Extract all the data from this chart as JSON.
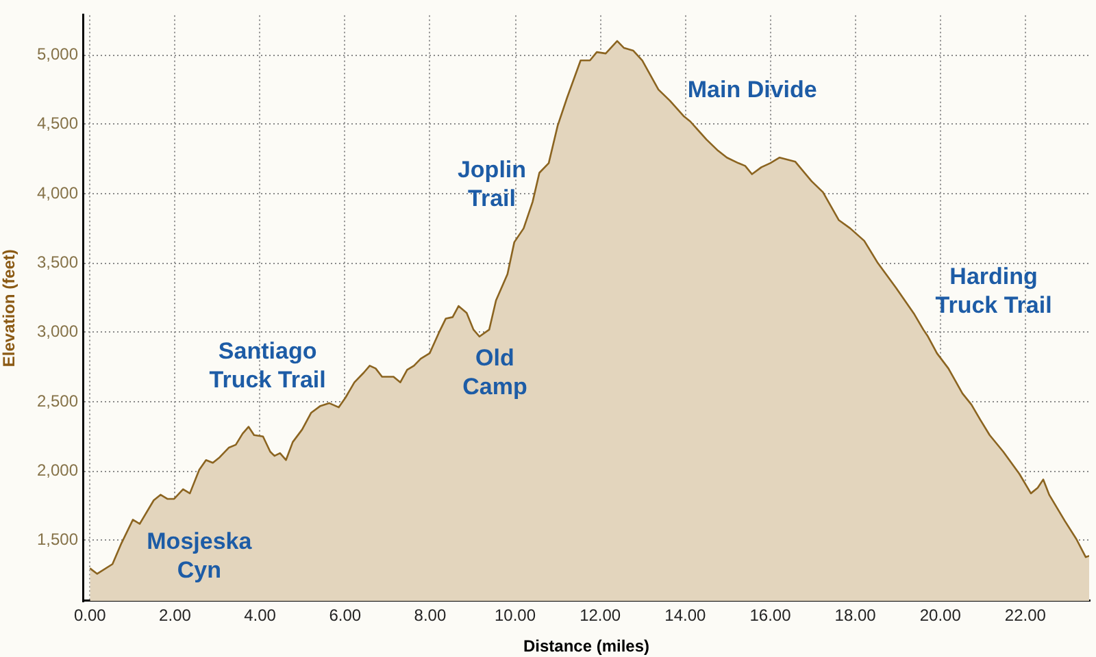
{
  "chart_data": {
    "type": "area",
    "xlabel": "Distance (miles)",
    "ylabel": "Elevation (feet)",
    "x": [
      0,
      0.17,
      0.53,
      0.74,
      1.01,
      1.17,
      1.5,
      1.66,
      1.82,
      1.98,
      2.19,
      2.35,
      2.57,
      2.73,
      2.89,
      3.05,
      3.27,
      3.43,
      3.59,
      3.73,
      3.86,
      4.07,
      4.24,
      4.34,
      4.47,
      4.61,
      4.77,
      4.99,
      5.2,
      5.42,
      5.63,
      5.85,
      6.01,
      6.22,
      6.44,
      6.58,
      6.72,
      6.87,
      7.14,
      7.3,
      7.46,
      7.62,
      7.78,
      7.99,
      8.21,
      8.37,
      8.53,
      8.67,
      8.86,
      9.02,
      9.16,
      9.39,
      9.55,
      9.82,
      9.98,
      10.2,
      10.41,
      10.57,
      10.79,
      11.0,
      11.22,
      11.54,
      11.76,
      11.92,
      12.13,
      12.4,
      12.56,
      12.78,
      12.99,
      13.37,
      13.64,
      13.96,
      14.12,
      14.5,
      14.77,
      14.98,
      15.25,
      15.41,
      15.57,
      15.79,
      16.0,
      16.22,
      16.59,
      16.97,
      17.24,
      17.61,
      17.88,
      18.21,
      18.53,
      18.96,
      19.39,
      19.6,
      19.71,
      19.92,
      20.19,
      20.52,
      20.73,
      20.94,
      21.16,
      21.48,
      21.86,
      22.13,
      22.29,
      22.42,
      22.56,
      22.93,
      23.2,
      23.42,
      23.5
    ],
    "values": [
      1300,
      1260,
      1330,
      1480,
      1650,
      1620,
      1790,
      1830,
      1800,
      1800,
      1870,
      1840,
      2010,
      2080,
      2060,
      2100,
      2170,
      2190,
      2270,
      2320,
      2260,
      2250,
      2140,
      2110,
      2130,
      2080,
      2210,
      2300,
      2420,
      2470,
      2490,
      2460,
      2530,
      2640,
      2710,
      2760,
      2740,
      2680,
      2680,
      2640,
      2730,
      2760,
      2810,
      2850,
      3000,
      3100,
      3110,
      3190,
      3140,
      3020,
      2970,
      3020,
      3230,
      3420,
      3650,
      3750,
      3940,
      4150,
      4220,
      4490,
      4690,
      4960,
      4960,
      5020,
      5010,
      5100,
      5050,
      5030,
      4960,
      4750,
      4670,
      4560,
      4520,
      4390,
      4310,
      4260,
      4220,
      4200,
      4140,
      4190,
      4220,
      4260,
      4230,
      4090,
      4010,
      3810,
      3750,
      3660,
      3500,
      3320,
      3130,
      3020,
      2970,
      2850,
      2740,
      2560,
      2480,
      2370,
      2260,
      2140,
      1980,
      1840,
      1880,
      1940,
      1830,
      1640,
      1510,
      1380,
      1390
    ],
    "color": "#e3d5bd",
    "xlim": [
      -0.15,
      23.5
    ],
    "ylim": [
      1065,
      5285
    ],
    "xticks": [
      {
        "value": 0,
        "label": "0.00"
      },
      {
        "value": 2,
        "label": "2.00"
      },
      {
        "value": 4,
        "label": "4.00"
      },
      {
        "value": 6,
        "label": "6.00"
      },
      {
        "value": 8,
        "label": "8.00"
      },
      {
        "value": 10,
        "label": "10.00"
      },
      {
        "value": 12,
        "label": "12.00"
      },
      {
        "value": 14,
        "label": "14.00"
      },
      {
        "value": 16,
        "label": "16.00"
      },
      {
        "value": 18,
        "label": "18.00"
      },
      {
        "value": 20,
        "label": "20.00"
      },
      {
        "value": 22,
        "label": "22.00"
      }
    ],
    "yticks": [
      {
        "value": 1500,
        "label": "1,500"
      },
      {
        "value": 2000,
        "label": "2,000"
      },
      {
        "value": 2500,
        "label": "2,500"
      },
      {
        "value": 3000,
        "label": "3,000"
      },
      {
        "value": 3500,
        "label": "3,500"
      },
      {
        "value": 4000,
        "label": "4,000"
      },
      {
        "value": 4500,
        "label": "4,500"
      },
      {
        "value": 5000,
        "label": "5,000"
      }
    ],
    "grid": true,
    "annotations": [
      "Mosjeska\nCyn",
      "Santiago\nTruck Trail",
      "Old\nCamp",
      "Joplin\nTrail",
      "Main Divide",
      "Harding\nTruck Trail"
    ]
  }
}
